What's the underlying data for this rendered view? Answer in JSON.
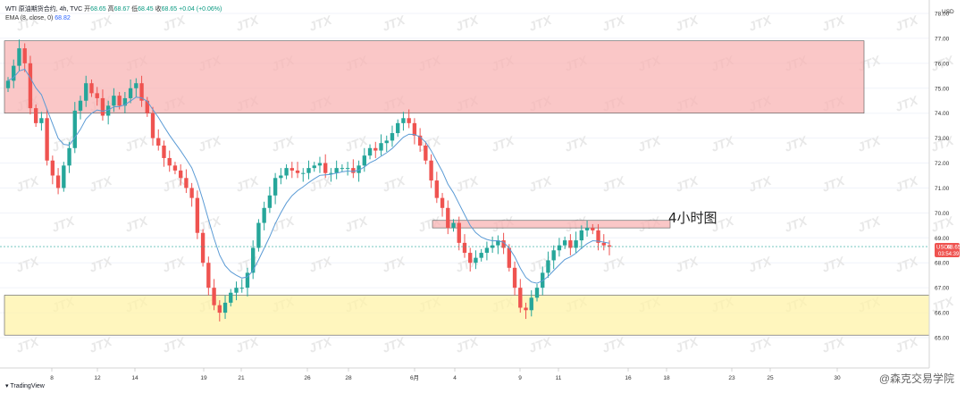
{
  "legend": {
    "symbol": "WTI 原油期货合约, 4h, TVC",
    "open_label": "开",
    "open": "68.65",
    "high_label": "高",
    "high": "68.67",
    "low_label": "低",
    "low": "68.45",
    "close_label": "收",
    "close": "68.65",
    "change": "+0.04 (+0.06%)",
    "ema_label": "EMA (8, close, 0)",
    "ema_value": "68.82"
  },
  "currency_label": "USD",
  "annotation": "4小时图",
  "last_price": {
    "symbol": "USOIL",
    "value": "68.65",
    "countdown": "03:54:39"
  },
  "brand": "TradingView",
  "watermark_source": "@森克交易学院",
  "colors": {
    "up": "#26a69a",
    "down": "#ef5350",
    "ema": "#5b9bd5",
    "resistance_zone": "#f8b4b4",
    "support_zone": "#fff3a8",
    "minor_zone": "#f8b4b4"
  },
  "chart_data": {
    "type": "candlestick",
    "title": "",
    "timeframe": "4h",
    "x_tick_labels": [
      "8",
      "12",
      "14",
      "19",
      "21",
      "26",
      "28",
      "6月",
      "4",
      "9",
      "11",
      "16",
      "18",
      "23",
      "25",
      "30"
    ],
    "y_tick_labels": [
      "65.00",
      "66.00",
      "67.00",
      "68.00",
      "69.00",
      "70.00",
      "71.00",
      "72.00",
      "73.00",
      "74.00",
      "75.00",
      "76.00",
      "77.00",
      "78.00"
    ],
    "ylim": [
      64.8,
      78.2
    ],
    "zones": [
      {
        "name": "resistance",
        "y_from": 74.0,
        "y_to": 76.9
      },
      {
        "name": "minor-resistance",
        "y_from": 69.4,
        "y_to": 69.7
      },
      {
        "name": "support",
        "y_from": 65.1,
        "y_to": 66.7
      }
    ],
    "last_price": 68.65,
    "closes": [
      75.3,
      75.9,
      76.6,
      76.0,
      74.2,
      73.6,
      73.8,
      72.1,
      71.5,
      71.0,
      71.9,
      72.6,
      74.1,
      74.5,
      75.2,
      74.8,
      74.6,
      73.9,
      74.3,
      74.7,
      74.3,
      74.6,
      75.0,
      75.2,
      74.5,
      74.0,
      73.0,
      72.7,
      72.2,
      71.9,
      71.7,
      71.4,
      71.0,
      70.6,
      69.2,
      68.0,
      67.0,
      66.3,
      66.0,
      66.4,
      66.8,
      67.0,
      67.0,
      67.6,
      68.6,
      69.6,
      70.2,
      70.7,
      71.4,
      71.5,
      71.8,
      71.7,
      71.6,
      71.6,
      71.8,
      71.9,
      72.0,
      71.6,
      71.6,
      71.8,
      71.8,
      71.8,
      71.6,
      71.9,
      72.3,
      72.6,
      72.5,
      72.8,
      72.9,
      73.2,
      73.6,
      73.8,
      73.6,
      73.1,
      72.7,
      72.1,
      71.3,
      70.6,
      70.2,
      69.4,
      69.6,
      68.8,
      68.4,
      68.0,
      68.2,
      68.4,
      68.6,
      68.7,
      68.9,
      68.6,
      67.8,
      67.0,
      66.2,
      66.1,
      66.6,
      67.0,
      67.6,
      68.1,
      68.5,
      68.7,
      68.9,
      68.6,
      68.9,
      69.3,
      69.4,
      69.3,
      68.8,
      68.7,
      68.65
    ],
    "ema_period": 8
  }
}
